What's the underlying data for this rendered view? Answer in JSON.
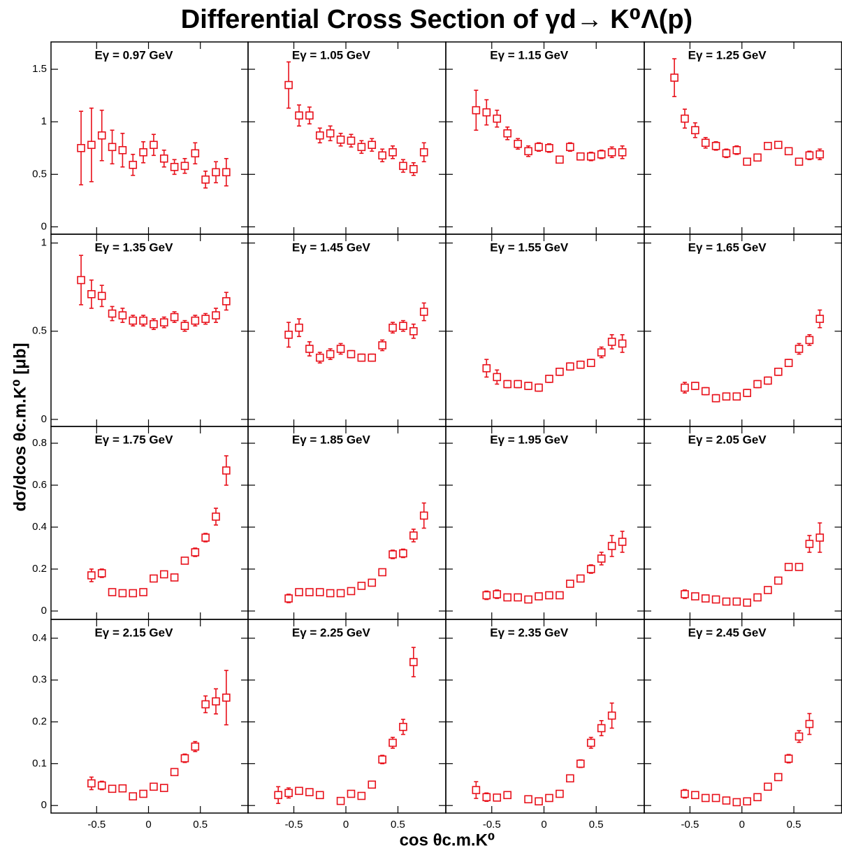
{
  "title": "Differential Cross Section of γd→ K⁰Λ(p)",
  "x_label": "cos θc.m.K⁰",
  "y_label": "dσ/dcos θc.m.K⁰ [μb]",
  "chart_data": [
    {
      "type": "scatter",
      "title": "Eγ = 0.97 GeV",
      "color": "#e8101a",
      "x": [
        -0.65,
        -0.55,
        -0.45,
        -0.35,
        -0.25,
        -0.15,
        -0.05,
        0.05,
        0.15,
        0.25,
        0.35,
        0.45,
        0.55,
        0.65,
        0.75
      ],
      "values": [
        0.75,
        0.78,
        0.87,
        0.76,
        0.73,
        0.59,
        0.71,
        0.78,
        0.65,
        0.57,
        0.58,
        0.7,
        0.45,
        0.52,
        0.52
      ],
      "errors": [
        0.35,
        0.35,
        0.24,
        0.16,
        0.16,
        0.1,
        0.1,
        0.1,
        0.08,
        0.07,
        0.07,
        0.1,
        0.08,
        0.1,
        0.13
      ],
      "xlim": [
        -0.94,
        0.96
      ],
      "xticks": [
        -0.5,
        0,
        0.5
      ],
      "ylim": [
        -0.07,
        1.76
      ],
      "yticks": [
        0,
        0.5,
        1,
        1.5
      ]
    },
    {
      "type": "scatter",
      "title": "Eγ = 1.05 GeV",
      "color": "#e8101a",
      "x": [
        -0.55,
        -0.45,
        -0.35,
        -0.25,
        -0.15,
        -0.05,
        0.05,
        0.15,
        0.25,
        0.35,
        0.45,
        0.55,
        0.65,
        0.75
      ],
      "values": [
        1.35,
        1.06,
        1.06,
        0.87,
        0.89,
        0.83,
        0.82,
        0.76,
        0.78,
        0.68,
        0.71,
        0.58,
        0.55,
        0.71
      ],
      "errors": [
        0.22,
        0.1,
        0.08,
        0.07,
        0.07,
        0.06,
        0.06,
        0.06,
        0.06,
        0.06,
        0.06,
        0.06,
        0.06,
        0.09
      ],
      "xlim": [
        -0.94,
        0.96
      ],
      "xticks": [
        -0.5,
        0,
        0.5
      ],
      "ylim": [
        -0.07,
        1.76
      ],
      "yticks": [
        0,
        0.5,
        1,
        1.5
      ]
    },
    {
      "type": "scatter",
      "title": "Eγ = 1.15 GeV",
      "color": "#e8101a",
      "x": [
        -0.65,
        -0.55,
        -0.45,
        -0.35,
        -0.25,
        -0.15,
        -0.05,
        0.05,
        0.15,
        0.25,
        0.35,
        0.45,
        0.55,
        0.65,
        0.75
      ],
      "values": [
        1.11,
        1.09,
        1.03,
        0.89,
        0.79,
        0.72,
        0.76,
        0.75,
        0.64,
        0.76,
        0.67,
        0.67,
        0.69,
        0.71,
        0.71
      ],
      "errors": [
        0.19,
        0.12,
        0.08,
        0.06,
        0.05,
        0.05,
        0.04,
        0.04,
        0.03,
        0.04,
        0.03,
        0.04,
        0.04,
        0.05,
        0.06
      ],
      "xlim": [
        -0.94,
        0.96
      ],
      "xticks": [
        -0.5,
        0,
        0.5
      ],
      "ylim": [
        -0.07,
        1.76
      ],
      "yticks": [
        0,
        0.5,
        1,
        1.5
      ]
    },
    {
      "type": "scatter",
      "title": "Eγ = 1.25 GeV",
      "color": "#e8101a",
      "x": [
        -0.65,
        -0.55,
        -0.45,
        -0.35,
        -0.25,
        -0.15,
        -0.05,
        0.05,
        0.15,
        0.25,
        0.35,
        0.45,
        0.55,
        0.65,
        0.75
      ],
      "values": [
        1.42,
        1.03,
        0.92,
        0.8,
        0.77,
        0.7,
        0.73,
        0.62,
        0.66,
        0.77,
        0.78,
        0.72,
        0.62,
        0.68,
        0.69
      ],
      "errors": [
        0.18,
        0.09,
        0.07,
        0.05,
        0.04,
        0.04,
        0.04,
        0.03,
        0.03,
        0.03,
        0.03,
        0.03,
        0.03,
        0.04,
        0.05
      ],
      "xlim": [
        -0.94,
        0.96
      ],
      "xticks": [
        -0.5,
        0,
        0.5
      ],
      "ylim": [
        -0.07,
        1.76
      ],
      "yticks": [
        0,
        0.5,
        1,
        1.5
      ]
    },
    {
      "type": "scatter",
      "title": "Eγ = 1.35 GeV",
      "color": "#e8101a",
      "x": [
        -0.65,
        -0.55,
        -0.45,
        -0.35,
        -0.25,
        -0.15,
        -0.05,
        0.05,
        0.15,
        0.25,
        0.35,
        0.45,
        0.55,
        0.65,
        0.75
      ],
      "values": [
        0.79,
        0.71,
        0.7,
        0.6,
        0.59,
        0.56,
        0.56,
        0.54,
        0.55,
        0.58,
        0.53,
        0.56,
        0.57,
        0.59,
        0.67
      ],
      "errors": [
        0.14,
        0.08,
        0.06,
        0.04,
        0.04,
        0.03,
        0.03,
        0.03,
        0.03,
        0.03,
        0.03,
        0.03,
        0.03,
        0.04,
        0.05
      ],
      "xlim": [
        -0.94,
        0.96
      ],
      "xticks": [
        -0.5,
        0,
        0.5
      ],
      "ylim": [
        -0.04,
        1.05
      ],
      "yticks": [
        0,
        0.5,
        1
      ]
    },
    {
      "type": "scatter",
      "title": "Eγ = 1.45 GeV",
      "color": "#e8101a",
      "x": [
        -0.55,
        -0.45,
        -0.35,
        -0.25,
        -0.15,
        -0.05,
        0.05,
        0.15,
        0.25,
        0.35,
        0.45,
        0.55,
        0.65,
        0.75
      ],
      "values": [
        0.48,
        0.52,
        0.4,
        0.35,
        0.37,
        0.4,
        0.37,
        0.35,
        0.35,
        0.42,
        0.52,
        0.53,
        0.5,
        0.61
      ],
      "errors": [
        0.07,
        0.05,
        0.04,
        0.03,
        0.03,
        0.03,
        0.02,
        0.02,
        0.02,
        0.03,
        0.03,
        0.03,
        0.04,
        0.05
      ],
      "xlim": [
        -0.94,
        0.96
      ],
      "xticks": [
        -0.5,
        0,
        0.5
      ],
      "ylim": [
        -0.04,
        1.05
      ],
      "yticks": [
        0,
        0.5,
        1
      ]
    },
    {
      "type": "scatter",
      "title": "Eγ = 1.55 GeV",
      "color": "#e8101a",
      "x": [
        -0.55,
        -0.45,
        -0.35,
        -0.25,
        -0.15,
        -0.05,
        0.05,
        0.15,
        0.25,
        0.35,
        0.45,
        0.55,
        0.65,
        0.75
      ],
      "values": [
        0.29,
        0.24,
        0.2,
        0.2,
        0.19,
        0.18,
        0.23,
        0.27,
        0.3,
        0.31,
        0.32,
        0.38,
        0.44,
        0.43
      ],
      "errors": [
        0.05,
        0.04,
        0.02,
        0.02,
        0.02,
        0.02,
        0.02,
        0.02,
        0.02,
        0.02,
        0.02,
        0.03,
        0.04,
        0.05
      ],
      "xlim": [
        -0.94,
        0.96
      ],
      "xticks": [
        -0.5,
        0,
        0.5
      ],
      "ylim": [
        -0.04,
        1.05
      ],
      "yticks": [
        0,
        0.5,
        1
      ]
    },
    {
      "type": "scatter",
      "title": "Eγ = 1.65 GeV",
      "color": "#e8101a",
      "x": [
        -0.55,
        -0.45,
        -0.35,
        -0.25,
        -0.15,
        -0.05,
        0.05,
        0.15,
        0.25,
        0.35,
        0.45,
        0.55,
        0.65,
        0.75
      ],
      "values": [
        0.18,
        0.19,
        0.16,
        0.12,
        0.13,
        0.13,
        0.15,
        0.2,
        0.22,
        0.27,
        0.32,
        0.4,
        0.45,
        0.57
      ],
      "errors": [
        0.03,
        0.02,
        0.02,
        0.02,
        0.01,
        0.01,
        0.02,
        0.02,
        0.02,
        0.02,
        0.02,
        0.03,
        0.03,
        0.05
      ],
      "xlim": [
        -0.94,
        0.96
      ],
      "xticks": [
        -0.5,
        0,
        0.5
      ],
      "ylim": [
        -0.04,
        1.05
      ],
      "yticks": [
        0,
        0.5,
        1
      ]
    },
    {
      "type": "scatter",
      "title": "Eγ = 1.75 GeV",
      "color": "#e8101a",
      "x": [
        -0.55,
        -0.45,
        -0.35,
        -0.25,
        -0.15,
        -0.05,
        0.05,
        0.15,
        0.25,
        0.35,
        0.45,
        0.55,
        0.65,
        0.75
      ],
      "values": [
        0.17,
        0.18,
        0.09,
        0.085,
        0.085,
        0.09,
        0.155,
        0.175,
        0.16,
        0.24,
        0.28,
        0.35,
        0.45,
        0.67
      ],
      "errors": [
        0.03,
        0.02,
        0.01,
        0.01,
        0.01,
        0.01,
        0.01,
        0.01,
        0.01,
        0.01,
        0.02,
        0.02,
        0.04,
        0.07
      ],
      "xlim": [
        -0.94,
        0.96
      ],
      "xticks": [
        -0.5,
        0,
        0.5
      ],
      "ylim": [
        -0.04,
        0.88
      ],
      "yticks": [
        0,
        0.2,
        0.4,
        0.6,
        0.8
      ]
    },
    {
      "type": "scatter",
      "title": "Eγ = 1.85 GeV",
      "color": "#e8101a",
      "x": [
        -0.55,
        -0.45,
        -0.35,
        -0.25,
        -0.15,
        -0.05,
        0.05,
        0.15,
        0.25,
        0.35,
        0.45,
        0.55,
        0.65,
        0.75
      ],
      "values": [
        0.06,
        0.09,
        0.09,
        0.09,
        0.085,
        0.085,
        0.095,
        0.12,
        0.135,
        0.185,
        0.27,
        0.275,
        0.36,
        0.455
      ],
      "errors": [
        0.02,
        0.01,
        0.01,
        0.01,
        0.01,
        0.01,
        0.01,
        0.01,
        0.01,
        0.01,
        0.02,
        0.02,
        0.03,
        0.06
      ],
      "xlim": [
        -0.94,
        0.96
      ],
      "xticks": [
        -0.5,
        0,
        0.5
      ],
      "ylim": [
        -0.04,
        0.88
      ],
      "yticks": [
        0,
        0.2,
        0.4,
        0.6,
        0.8
      ]
    },
    {
      "type": "scatter",
      "title": "Eγ = 1.95 GeV",
      "color": "#e8101a",
      "x": [
        -0.55,
        -0.45,
        -0.35,
        -0.25,
        -0.15,
        -0.05,
        0.05,
        0.15,
        0.25,
        0.35,
        0.45,
        0.55,
        0.65,
        0.75
      ],
      "values": [
        0.075,
        0.08,
        0.065,
        0.065,
        0.055,
        0.07,
        0.075,
        0.075,
        0.13,
        0.155,
        0.2,
        0.25,
        0.31,
        0.33
      ],
      "errors": [
        0.02,
        0.02,
        0.01,
        0.01,
        0.01,
        0.01,
        0.01,
        0.01,
        0.01,
        0.01,
        0.02,
        0.03,
        0.05,
        0.05
      ],
      "xlim": [
        -0.94,
        0.96
      ],
      "xticks": [
        -0.5,
        0,
        0.5
      ],
      "ylim": [
        -0.04,
        0.88
      ],
      "yticks": [
        0,
        0.2,
        0.4,
        0.6,
        0.8
      ]
    },
    {
      "type": "scatter",
      "title": "Eγ = 2.05 GeV",
      "color": "#e8101a",
      "x": [
        -0.55,
        -0.45,
        -0.35,
        -0.25,
        -0.15,
        -0.05,
        0.05,
        0.15,
        0.25,
        0.35,
        0.45,
        0.55,
        0.65,
        0.75
      ],
      "values": [
        0.08,
        0.07,
        0.06,
        0.055,
        0.045,
        0.045,
        0.04,
        0.065,
        0.1,
        0.145,
        0.21,
        0.21,
        0.32,
        0.35
      ],
      "errors": [
        0.02,
        0.01,
        0.01,
        0.01,
        0.01,
        0.01,
        0.01,
        0.01,
        0.01,
        0.01,
        0.01,
        0.01,
        0.04,
        0.07
      ],
      "xlim": [
        -0.94,
        0.96
      ],
      "xticks": [
        -0.5,
        0,
        0.5
      ],
      "ylim": [
        -0.04,
        0.88
      ],
      "yticks": [
        0,
        0.2,
        0.4,
        0.6,
        0.8
      ]
    },
    {
      "type": "scatter",
      "title": "Eγ = 2.15 GeV",
      "color": "#e8101a",
      "x": [
        -0.55,
        -0.45,
        -0.35,
        -0.25,
        -0.15,
        -0.05,
        0.05,
        0.15,
        0.25,
        0.35,
        0.45,
        0.55,
        0.65,
        0.75
      ],
      "values": [
        0.053,
        0.048,
        0.04,
        0.041,
        0.022,
        0.028,
        0.045,
        0.042,
        0.08,
        0.113,
        0.141,
        0.242,
        0.249,
        0.258
      ],
      "errors": [
        0.015,
        0.01,
        0.007,
        0.007,
        0.006,
        0.006,
        0.007,
        0.007,
        0.008,
        0.01,
        0.012,
        0.02,
        0.03,
        0.065
      ],
      "xlim": [
        -0.94,
        0.96
      ],
      "xticks": [
        -0.5,
        0,
        0.5
      ],
      "ylim": [
        -0.018,
        0.445
      ],
      "yticks": [
        0,
        0.1,
        0.2,
        0.3,
        0.4
      ]
    },
    {
      "type": "scatter",
      "title": "Eγ = 2.25 GeV",
      "color": "#e8101a",
      "x": [
        -0.65,
        -0.55,
        -0.45,
        -0.35,
        -0.25,
        -0.05,
        0.05,
        0.15,
        0.25,
        0.35,
        0.45,
        0.55,
        0.65
      ],
      "values": [
        0.025,
        0.03,
        0.035,
        0.032,
        0.025,
        0.011,
        0.028,
        0.023,
        0.05,
        0.11,
        0.15,
        0.188,
        0.343
      ],
      "errors": [
        0.02,
        0.012,
        0.008,
        0.007,
        0.006,
        0.006,
        0.007,
        0.007,
        0.008,
        0.01,
        0.013,
        0.018,
        0.035
      ],
      "xlim": [
        -0.94,
        0.96
      ],
      "xticks": [
        -0.5,
        0,
        0.5
      ],
      "ylim": [
        -0.018,
        0.445
      ],
      "yticks": [
        0,
        0.1,
        0.2,
        0.3,
        0.4
      ]
    },
    {
      "type": "scatter",
      "title": "Eγ = 2.35 GeV",
      "color": "#e8101a",
      "x": [
        -0.65,
        -0.55,
        -0.45,
        -0.35,
        -0.15,
        -0.05,
        0.05,
        0.15,
        0.25,
        0.35,
        0.45,
        0.55,
        0.65
      ],
      "values": [
        0.037,
        0.02,
        0.019,
        0.025,
        0.015,
        0.01,
        0.018,
        0.028,
        0.065,
        0.1,
        0.15,
        0.185,
        0.215
      ],
      "errors": [
        0.02,
        0.01,
        0.007,
        0.006,
        0.005,
        0.005,
        0.006,
        0.006,
        0.007,
        0.009,
        0.013,
        0.018,
        0.03
      ],
      "xlim": [
        -0.94,
        0.96
      ],
      "xticks": [
        -0.5,
        0,
        0.5
      ],
      "ylim": [
        -0.018,
        0.445
      ],
      "yticks": [
        0,
        0.1,
        0.2,
        0.3,
        0.4
      ]
    },
    {
      "type": "scatter",
      "title": "Eγ = 2.45 GeV",
      "color": "#e8101a",
      "x": [
        -0.55,
        -0.45,
        -0.35,
        -0.25,
        -0.15,
        -0.05,
        0.05,
        0.15,
        0.25,
        0.35,
        0.45,
        0.55,
        0.65
      ],
      "values": [
        0.028,
        0.025,
        0.018,
        0.018,
        0.012,
        0.008,
        0.01,
        0.02,
        0.045,
        0.068,
        0.112,
        0.165,
        0.195
      ],
      "errors": [
        0.01,
        0.008,
        0.006,
        0.005,
        0.005,
        0.004,
        0.005,
        0.005,
        0.006,
        0.007,
        0.01,
        0.014,
        0.025
      ],
      "xlim": [
        -0.94,
        0.96
      ],
      "xticks": [
        -0.5,
        0,
        0.5
      ],
      "ylim": [
        -0.018,
        0.445
      ],
      "yticks": [
        0,
        0.1,
        0.2,
        0.3,
        0.4
      ]
    }
  ]
}
